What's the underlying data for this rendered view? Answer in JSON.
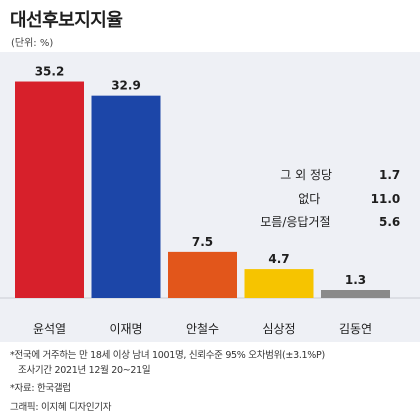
{
  "title": "대선후보지지율",
  "unit": "(단위: %)",
  "chart_data": {
    "type": "bar",
    "categories": [
      "윤석열",
      "이재명",
      "안철수",
      "심상정",
      "김동연"
    ],
    "values": [
      35.2,
      32.9,
      7.5,
      4.7,
      1.3
    ],
    "value_labels": [
      "35.2",
      "32.9",
      "7.5",
      "4.7",
      "1.3"
    ],
    "colors": [
      "#d7202b",
      "#1c46a8",
      "#e2561b",
      "#f6c400",
      "#8a8a8a"
    ],
    "ylim": [
      0,
      40
    ],
    "title": "",
    "xlabel": "",
    "ylabel": ""
  },
  "side_notes": [
    {
      "label": "그 외 정당",
      "value": "1.7"
    },
    {
      "label": "없다",
      "value": "11.0"
    },
    {
      "label": "모름/응답거절",
      "value": "5.6"
    }
  ],
  "footer": {
    "line1": "*전국에 거주하는 만 18세 이상 남녀 1001명, 신뢰수준 95% 오차범위(±3.1%P)",
    "line2": "조사기간 2021년 12월 20~21일",
    "source": "*자료: 한국갤럽",
    "credit": "그래픽: 이지혜 디자인기자"
  }
}
